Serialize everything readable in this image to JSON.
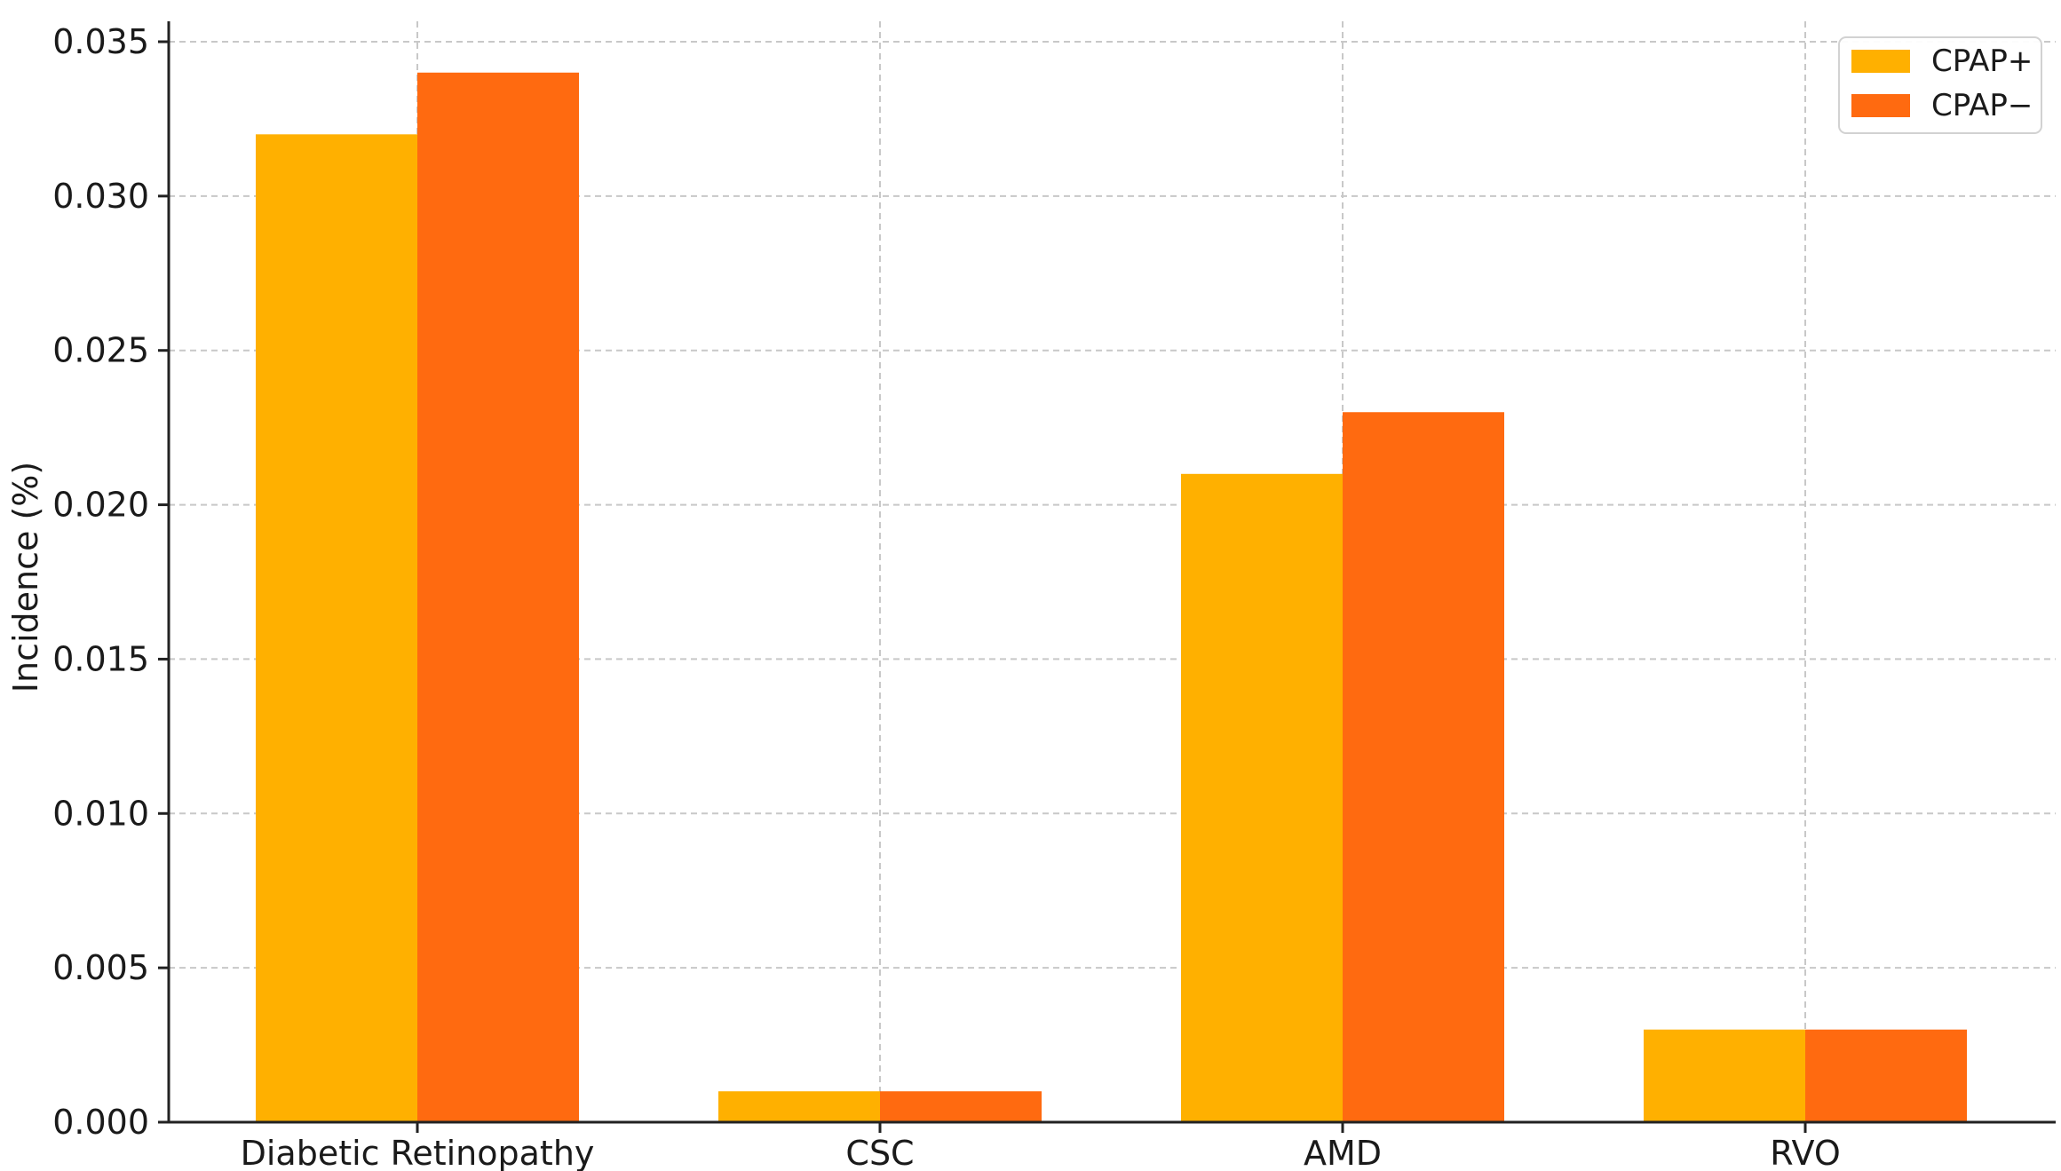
{
  "chart_data": {
    "type": "bar",
    "title": "",
    "xlabel": "",
    "ylabel": "Incidence (%)",
    "categories": [
      "Diabetic Retinopathy",
      "CSC",
      "AMD",
      "RVO"
    ],
    "series": [
      {
        "name": "CPAP+",
        "color": "#FFB000",
        "values": [
          0.032,
          0.001,
          0.021,
          0.003
        ]
      },
      {
        "name": "CPAP−",
        "color": "#FF6A10",
        "values": [
          0.034,
          0.001,
          0.023,
          0.003
        ]
      }
    ],
    "ylim": [
      0,
      0.035
    ],
    "yticks": [
      "0.000",
      "0.005",
      "0.010",
      "0.015",
      "0.020",
      "0.025",
      "0.030",
      "0.035"
    ],
    "grid": true,
    "legend_position": "top-right"
  }
}
